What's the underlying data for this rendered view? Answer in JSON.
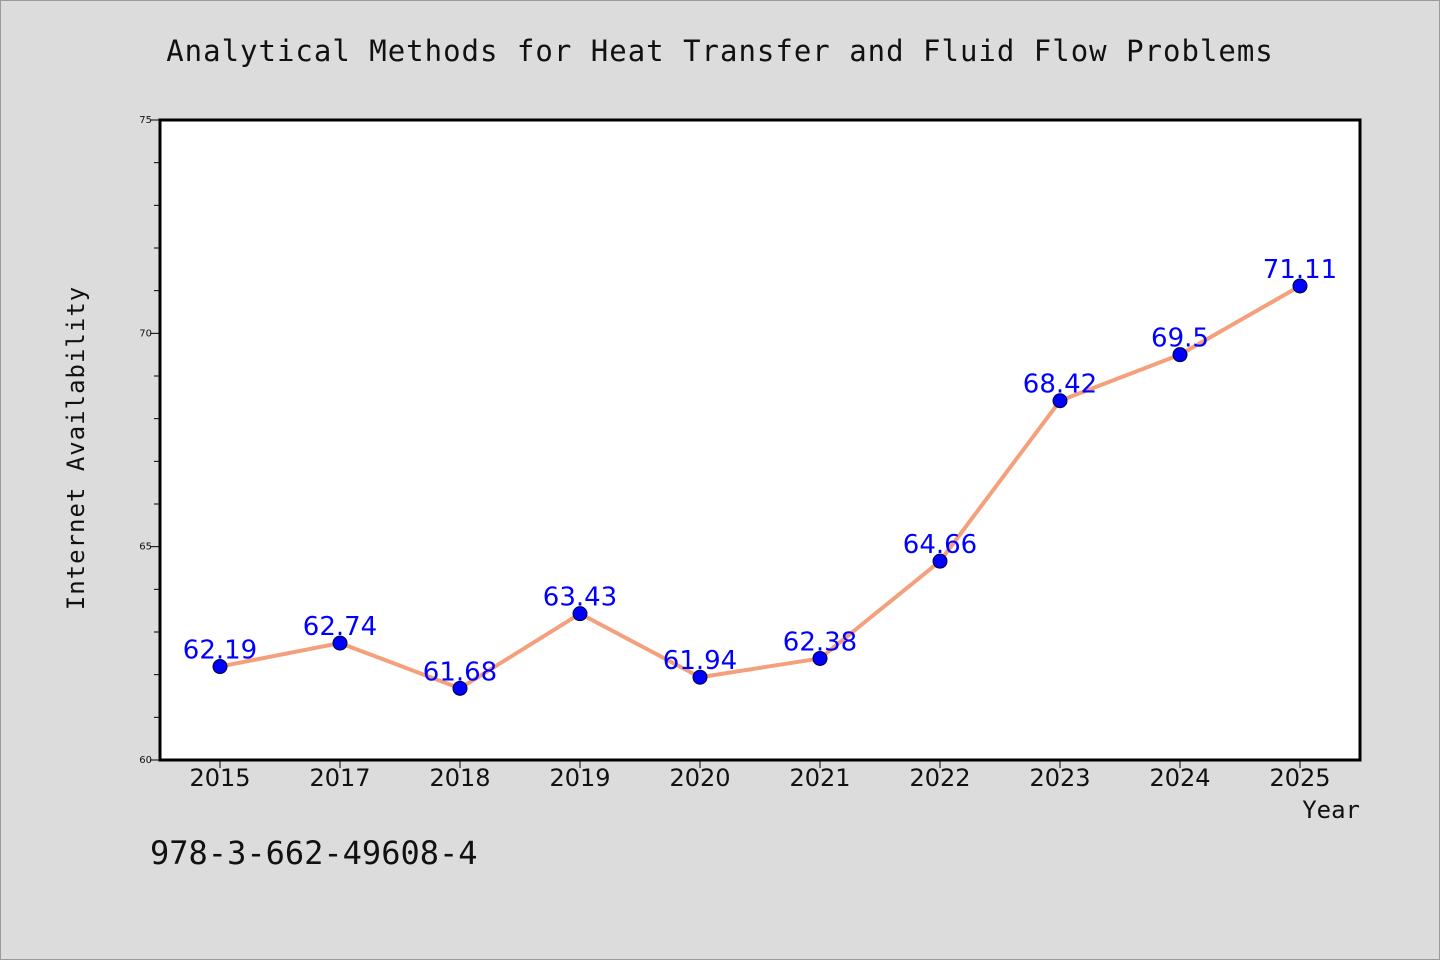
{
  "title": "Analytical Methods for Heat Transfer and Fluid Flow Problems",
  "isbn_text": "978-3-662-49608-4",
  "colors": {
    "background": "#dcdcdc",
    "plot_background": "#ffffff",
    "line": "#f5a07c",
    "marker": "#0000ff",
    "data_label": "#0000ff",
    "axis": "#000000"
  },
  "chart_data": {
    "type": "line",
    "title": "Analytical Methods for Heat Transfer and Fluid Flow Problems",
    "xlabel": "Year",
    "ylabel": "Internet Availability",
    "categories": [
      "2015",
      "2017",
      "2018",
      "2019",
      "2020",
      "2021",
      "2022",
      "2023",
      "2024",
      "2025"
    ],
    "series": [
      {
        "values": [
          62.19,
          62.74,
          61.68,
          63.43,
          61.94,
          62.38,
          64.66,
          68.42,
          69.5,
          71.11
        ],
        "labels": [
          "62.19",
          "62.74",
          "61.68",
          "63.43",
          "61.94",
          "62.38",
          "64.66",
          "68.42",
          "69.5",
          "71.11"
        ]
      }
    ],
    "ylim": [
      60,
      75
    ],
    "yticks": [
      60,
      65,
      70,
      75
    ],
    "yminor_step": 1,
    "grid": false,
    "legend": "none",
    "marker": "circle"
  }
}
